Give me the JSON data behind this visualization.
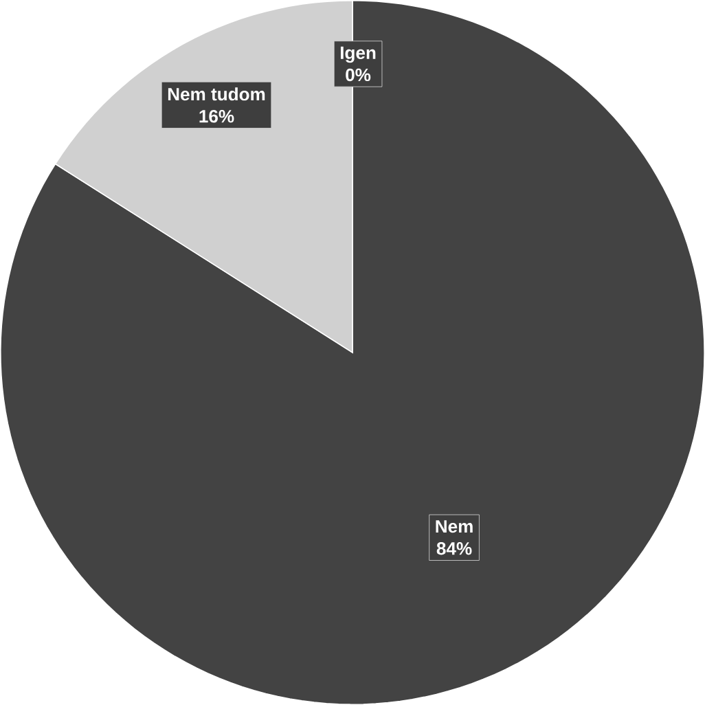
{
  "chart_data": {
    "type": "pie",
    "categories": [
      "Igen",
      "Nem",
      "Nem tudom"
    ],
    "values": [
      0,
      84,
      16
    ],
    "value_labels": [
      "0%",
      "84%",
      "16%"
    ],
    "colors": [
      "#7f7f7f",
      "#434343",
      "#d0d0d0"
    ]
  }
}
